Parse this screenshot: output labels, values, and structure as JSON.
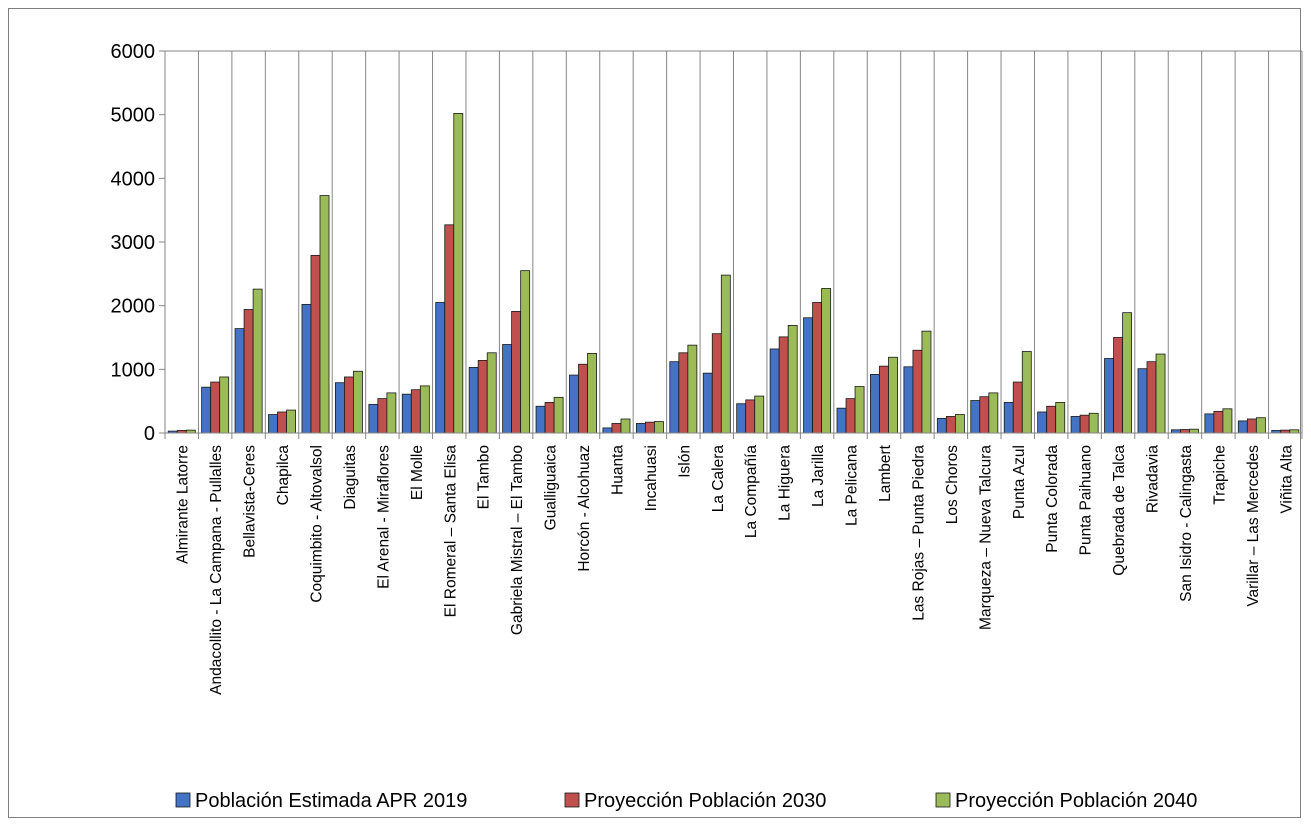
{
  "chart_data": {
    "type": "bar",
    "title": "",
    "xlabel": "",
    "ylabel": "",
    "ylim": [
      0,
      6000
    ],
    "yticks": [
      "0",
      "1000",
      "2000",
      "3000",
      "4000",
      "5000",
      "6000"
    ],
    "grid": "vertical separators between categories",
    "legend_position": "bottom",
    "categories": [
      "Almirante Latorre",
      "Andacollito - La Campana - Pullalles",
      "Bellavista-Ceres",
      "Chapilca",
      "Coquimbito - Altovalsol",
      "Diaguitas",
      "El Arenal - Miraflores",
      "El Molle",
      "El Romeral – Santa Elisa",
      "El Tambo",
      "Gabriela Mistral – El Tambo",
      "Gualliguaica",
      "Horcón - Alcohuaz",
      "Huanta",
      "Incahuasi",
      "Islón",
      "La Calera",
      "La Compañía",
      "La Higuera",
      "La Jarilla",
      "La Pelicana",
      "Lambert",
      "Las Rojas – Punta Piedra",
      "Los Choros",
      "Marqueza – Nueva Talcura",
      "Punta Azul",
      "Punta Colorada",
      "Punta Paihuano",
      "Quebrada de Talca",
      "Rivadavia",
      "San Isidro - Calingasta",
      "Trapiche",
      "Varillar – Las Mercedes",
      "Viñita Alta"
    ],
    "series": [
      {
        "name": "Población Estimada APR 2019",
        "color": "#4472c4",
        "values": [
          30,
          720,
          1640,
          290,
          2020,
          790,
          450,
          610,
          2050,
          1030,
          1390,
          420,
          910,
          80,
          150,
          1120,
          940,
          460,
          1320,
          1810,
          390,
          920,
          1040,
          230,
          510,
          480,
          330,
          260,
          1170,
          1010,
          50,
          300,
          190,
          40
        ]
      },
      {
        "name": "Proyección Población 2030",
        "color": "#c0504d",
        "values": [
          40,
          800,
          1940,
          330,
          2790,
          880,
          540,
          680,
          3270,
          1140,
          1910,
          480,
          1080,
          150,
          170,
          1260,
          1560,
          520,
          1510,
          2050,
          540,
          1050,
          1300,
          260,
          570,
          800,
          420,
          280,
          1500,
          1120,
          55,
          340,
          220,
          45
        ]
      },
      {
        "name": "Proyección Población 2040",
        "color": "#9bbb59",
        "values": [
          45,
          880,
          2260,
          360,
          3730,
          970,
          630,
          740,
          5020,
          1260,
          2550,
          560,
          1250,
          220,
          180,
          1380,
          2480,
          580,
          1690,
          2270,
          730,
          1190,
          1600,
          290,
          630,
          1280,
          480,
          310,
          1890,
          1240,
          60,
          380,
          240,
          50
        ]
      }
    ]
  }
}
